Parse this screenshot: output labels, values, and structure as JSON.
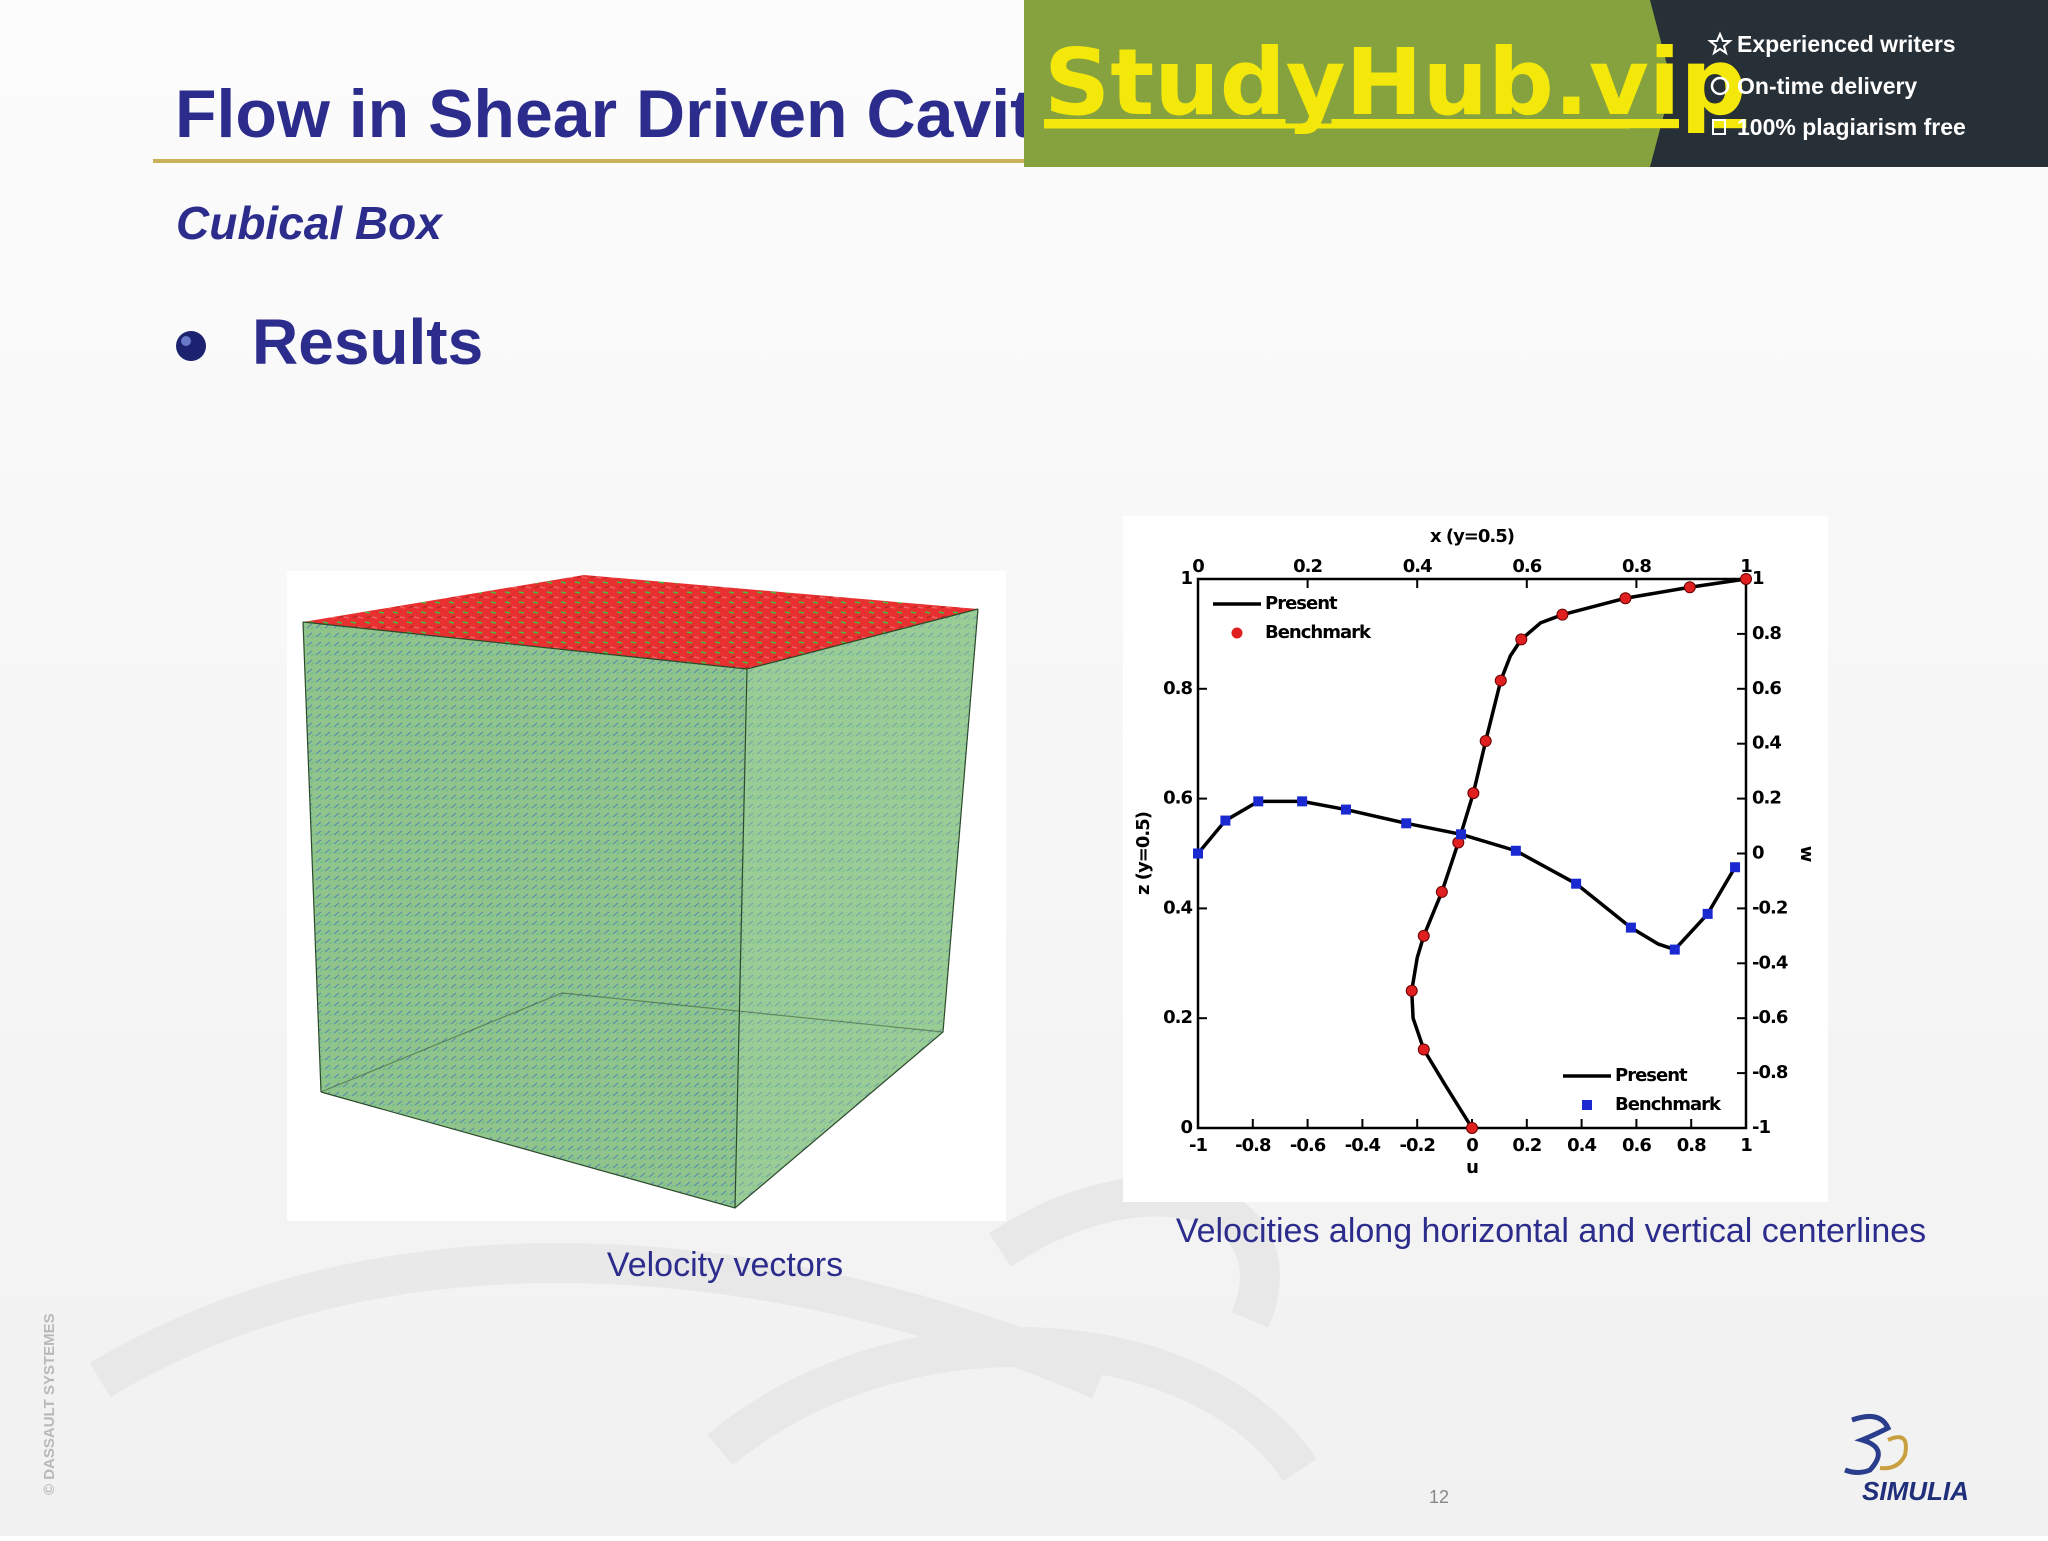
{
  "header": {
    "title": "Flow in Shear Driven Cavity",
    "subtitle": "Cubical Box",
    "bullet": "Results"
  },
  "banner": {
    "brand": "StudyHub.vip",
    "features": [
      "Experienced writers",
      "On-time delivery",
      "100% plagiarism free"
    ]
  },
  "figures": {
    "left_caption": "Velocity vectors",
    "right_caption": "Velocities along horizontal and vertical centerlines"
  },
  "footer": {
    "page_number": "12",
    "copyright": "© DASSAULT SYSTEMES",
    "logo": "SIMULIA"
  },
  "chart_data": {
    "type": "line",
    "xlabel": "u",
    "ylabel": "z (y=0.5)",
    "x2label": "x (y=0.5)",
    "y2label": "w",
    "xlim": [
      -1,
      1
    ],
    "xticks": [
      -1,
      -0.8,
      -0.6,
      -0.4,
      -0.2,
      0,
      0.2,
      0.4,
      0.6,
      0.8,
      1
    ],
    "ylim": [
      0,
      1
    ],
    "yticks": [
      0,
      0.2,
      0.4,
      0.6,
      0.8,
      1
    ],
    "x2lim": [
      0,
      1
    ],
    "x2ticks": [
      0,
      0.2,
      0.4,
      0.6,
      0.8,
      1
    ],
    "y2lim": [
      -1,
      1
    ],
    "y2ticks": [
      -1,
      -0.8,
      -0.6,
      -0.4,
      -0.2,
      0,
      0.2,
      0.4,
      0.6,
      0.8,
      1
    ],
    "series": [
      {
        "name": "Present",
        "color": "#000000",
        "marker": "none",
        "legend": "upper left",
        "x": [
          0,
          -0.1,
          -0.176,
          -0.215,
          -0.22,
          -0.2,
          -0.176,
          -0.11,
          -0.05,
          0.005,
          0.05,
          0.105,
          0.14,
          0.18,
          0.25,
          0.33,
          0.56,
          0.795,
          1
        ],
        "values": [
          0,
          0.08,
          0.143,
          0.2,
          0.25,
          0.31,
          0.35,
          0.43,
          0.52,
          0.61,
          0.705,
          0.815,
          0.86,
          0.89,
          0.92,
          0.935,
          0.965,
          0.985,
          1
        ]
      },
      {
        "name": "Benchmark",
        "color": "#e02020",
        "marker": "circle",
        "legend": "upper left",
        "x": [
          0,
          -0.176,
          -0.22,
          -0.176,
          -0.11,
          -0.05,
          0.005,
          0.05,
          0.105,
          0.18,
          0.33,
          0.56,
          0.795,
          1
        ],
        "values": [
          0,
          0.143,
          0.25,
          0.35,
          0.43,
          0.52,
          0.61,
          0.705,
          0.815,
          0.89,
          0.935,
          0.965,
          0.985,
          1
        ]
      },
      {
        "name": "Present",
        "color": "#000000",
        "marker": "none",
        "legend": "lower right",
        "axis": "y2",
        "xaxis": "x2",
        "x": [
          0,
          0.05,
          0.11,
          0.19,
          0.27,
          0.38,
          0.48,
          0.58,
          0.69,
          0.79,
          0.84,
          0.87,
          0.93,
          0.98
        ],
        "values": [
          0,
          0.12,
          0.19,
          0.19,
          0.16,
          0.11,
          0.07,
          0.01,
          -0.11,
          -0.27,
          -0.33,
          -0.35,
          -0.22,
          -0.05
        ]
      },
      {
        "name": "Benchmark",
        "color": "#1a2ad0",
        "marker": "square",
        "legend": "lower right",
        "axis": "y2",
        "xaxis": "x2",
        "x": [
          0,
          0.05,
          0.11,
          0.19,
          0.27,
          0.38,
          0.48,
          0.58,
          0.69,
          0.79,
          0.87,
          0.93,
          0.98
        ],
        "values": [
          0,
          0.12,
          0.19,
          0.19,
          0.16,
          0.11,
          0.07,
          0.01,
          -0.11,
          -0.27,
          -0.35,
          -0.22,
          -0.05
        ]
      }
    ]
  }
}
